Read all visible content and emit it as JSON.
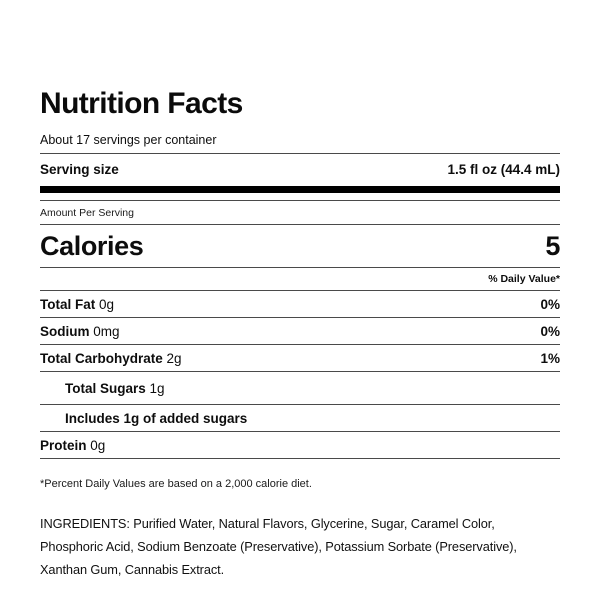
{
  "label": {
    "title": "Nutrition Facts",
    "servings_per_container": "About 17 servings per container",
    "serving_size": {
      "label": "Serving size",
      "value": "1.5 fl oz (44.4 mL)"
    },
    "amount_per_serving": "Amount Per Serving",
    "calories": {
      "label": "Calories",
      "value": "5"
    },
    "daily_value_header": "% Daily Value*",
    "nutrients": [
      {
        "name": "Total Fat",
        "amount": "0g",
        "dv": "0%"
      },
      {
        "name": "Sodium",
        "amount": "0mg",
        "dv": "0%"
      },
      {
        "name": "Total Carbohydrate",
        "amount": "2g",
        "dv": "1%"
      },
      {
        "name": "Total Sugars",
        "amount": "1g",
        "dv": ""
      },
      {
        "name": "Includes 1g of added sugars",
        "amount": "",
        "dv": ""
      },
      {
        "name": "Protein",
        "amount": "0g",
        "dv": ""
      }
    ],
    "footnote": "*Percent Daily Values are based on a 2,000 calorie diet.",
    "ingredients": "INGREDIENTS: Purified Water, Natural Flavors, Glycerine, Sugar, Caramel Color, Phosphoric Acid, Sodium Benzoate (Preservative), Potassium Sorbate (Preservative), Xanthan Gum, Cannabis Extract.",
    "colors": {
      "text": "#0d0d0d",
      "rule": "#4a4a4a",
      "thick_bar": "#000000",
      "background": "#ffffff"
    }
  }
}
